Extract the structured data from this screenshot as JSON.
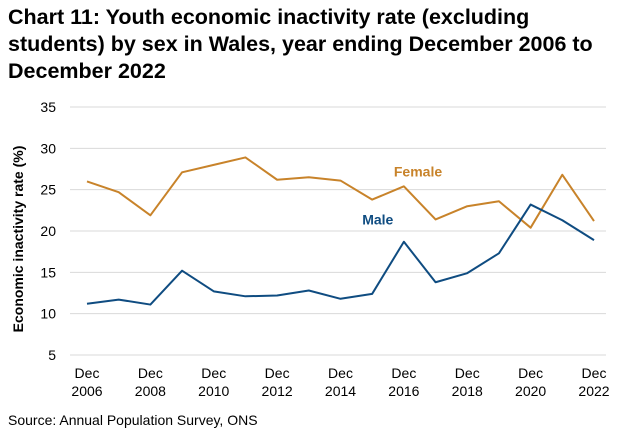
{
  "chart_data": {
    "type": "line",
    "title": "Chart 11: Youth economic inactivity rate (excluding students) by sex in Wales, year ending December 2006 to December 2022",
    "source": "Source: Annual Population Survey, ONS",
    "ylabel": "Economic inactivity rate (%)",
    "xlabel": "",
    "ylim": [
      5,
      35
    ],
    "yticks": [
      5,
      10,
      15,
      20,
      25,
      30,
      35
    ],
    "x": [
      2006,
      2007,
      2008,
      2009,
      2010,
      2011,
      2012,
      2013,
      2014,
      2015,
      2016,
      2017,
      2018,
      2019,
      2020,
      2021,
      2022
    ],
    "xtick_labels": [
      {
        "x": 2006,
        "line1": "Dec",
        "line2": "2006"
      },
      {
        "x": 2008,
        "line1": "Dec",
        "line2": "2008"
      },
      {
        "x": 2010,
        "line1": "Dec",
        "line2": "2010"
      },
      {
        "x": 2012,
        "line1": "Dec",
        "line2": "2012"
      },
      {
        "x": 2014,
        "line1": "Dec",
        "line2": "2014"
      },
      {
        "x": 2016,
        "line1": "Dec",
        "line2": "2016"
      },
      {
        "x": 2018,
        "line1": "Dec",
        "line2": "2018"
      },
      {
        "x": 2020,
        "line1": "Dec",
        "line2": "2020"
      },
      {
        "x": 2022,
        "line1": "Dec",
        "line2": "2022"
      }
    ],
    "grid": true,
    "series": [
      {
        "name": "Female",
        "color": "#C8832A",
        "label_at": [
          2016,
          26.6
        ],
        "values": [
          26.0,
          24.7,
          21.9,
          27.1,
          28.0,
          28.9,
          26.2,
          26.5,
          26.1,
          23.8,
          25.4,
          21.4,
          23.0,
          23.6,
          20.4,
          26.8,
          21.2
        ]
      },
      {
        "name": "Male",
        "color": "#0F4C81",
        "label_at": [
          2015,
          20.8
        ],
        "values": [
          11.2,
          11.7,
          11.1,
          15.2,
          12.7,
          12.1,
          12.2,
          12.8,
          11.8,
          12.4,
          18.7,
          13.8,
          14.9,
          17.3,
          23.2,
          21.3,
          18.9
        ]
      }
    ]
  }
}
